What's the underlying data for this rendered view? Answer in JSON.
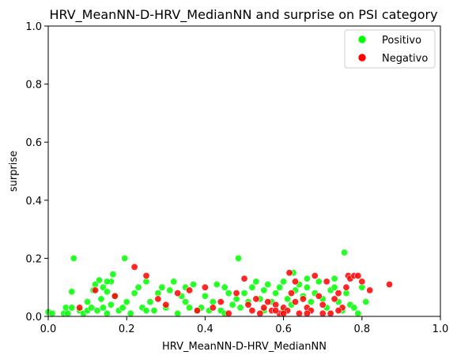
{
  "chart_data": {
    "type": "scatter",
    "title": "HRV_MeanNN-D-HRV_MedianNN and surprise on PSI category",
    "xlabel": "HRV_MeanNN-D-HRV_MedianNN",
    "ylabel": "surprise",
    "xlim": [
      0.0,
      1.0
    ],
    "ylim": [
      0.0,
      1.0
    ],
    "xticks": [
      "0.0",
      "0.2",
      "0.4",
      "0.6",
      "0.8",
      "1.0"
    ],
    "yticks": [
      "0.0",
      "0.2",
      "0.4",
      "0.6",
      "0.8",
      "1.0"
    ],
    "grid": false,
    "legend_position": "top-right",
    "series": [
      {
        "name": "Positivo",
        "color": "#00ff00",
        "points": [
          [
            0.0,
            0.015
          ],
          [
            0.01,
            0.01
          ],
          [
            0.04,
            0.01
          ],
          [
            0.045,
            0.03
          ],
          [
            0.06,
            0.03
          ],
          [
            0.06,
            0.085
          ],
          [
            0.065,
            0.2
          ],
          [
            0.08,
            0.02
          ],
          [
            0.09,
            0.01
          ],
          [
            0.1,
            0.05
          ],
          [
            0.1,
            0.02
          ],
          [
            0.11,
            0.03
          ],
          [
            0.115,
            0.09
          ],
          [
            0.12,
            0.11
          ],
          [
            0.125,
            0.02
          ],
          [
            0.13,
            0.125
          ],
          [
            0.135,
            0.06
          ],
          [
            0.14,
            0.1
          ],
          [
            0.14,
            0.03
          ],
          [
            0.15,
            0.085
          ],
          [
            0.15,
            0.01
          ],
          [
            0.16,
            0.12
          ],
          [
            0.16,
            0.04
          ],
          [
            0.165,
            0.145
          ],
          [
            0.17,
            0.07
          ],
          [
            0.18,
            0.02
          ],
          [
            0.19,
            0.03
          ],
          [
            0.195,
            0.2
          ],
          [
            0.2,
            0.05
          ],
          [
            0.21,
            0.01
          ],
          [
            0.22,
            0.08
          ],
          [
            0.23,
            0.1
          ],
          [
            0.24,
            0.03
          ],
          [
            0.25,
            0.12
          ],
          [
            0.26,
            0.05
          ],
          [
            0.27,
            0.02
          ],
          [
            0.28,
            0.08
          ],
          [
            0.29,
            0.1
          ],
          [
            0.3,
            0.03
          ],
          [
            0.31,
            0.09
          ],
          [
            0.32,
            0.12
          ],
          [
            0.33,
            0.01
          ],
          [
            0.34,
            0.07
          ],
          [
            0.35,
            0.1
          ],
          [
            0.36,
            0.03
          ],
          [
            0.37,
            0.11
          ],
          [
            0.38,
            0.02
          ],
          [
            0.39,
            0.03
          ],
          [
            0.4,
            0.07
          ],
          [
            0.41,
            0.02
          ],
          [
            0.42,
            0.05
          ],
          [
            0.43,
            0.11
          ],
          [
            0.44,
            0.02
          ],
          [
            0.45,
            0.1
          ],
          [
            0.46,
            0.08
          ],
          [
            0.47,
            0.04
          ],
          [
            0.48,
            0.06
          ],
          [
            0.485,
            0.2
          ],
          [
            0.49,
            0.03
          ],
          [
            0.5,
            0.08
          ],
          [
            0.51,
            0.05
          ],
          [
            0.52,
            0.1
          ],
          [
            0.53,
            0.12
          ],
          [
            0.54,
            0.06
          ],
          [
            0.55,
            0.09
          ],
          [
            0.56,
            0.11
          ],
          [
            0.57,
            0.05
          ],
          [
            0.58,
            0.08
          ],
          [
            0.59,
            0.1
          ],
          [
            0.6,
            0.12
          ],
          [
            0.61,
            0.06
          ],
          [
            0.62,
            0.04
          ],
          [
            0.625,
            0.15
          ],
          [
            0.63,
            0.09
          ],
          [
            0.64,
            0.11
          ],
          [
            0.65,
            0.07
          ],
          [
            0.66,
            0.1
          ],
          [
            0.67,
            0.05
          ],
          [
            0.68,
            0.08
          ],
          [
            0.69,
            0.12
          ],
          [
            0.7,
            0.06
          ],
          [
            0.71,
            0.03
          ],
          [
            0.72,
            0.09
          ],
          [
            0.73,
            0.1
          ],
          [
            0.74,
            0.05
          ],
          [
            0.75,
            0.02
          ],
          [
            0.755,
            0.22
          ],
          [
            0.76,
            0.08
          ],
          [
            0.77,
            0.04
          ],
          [
            0.78,
            0.03
          ],
          [
            0.79,
            0.01
          ],
          [
            0.8,
            0.1
          ],
          [
            0.81,
            0.05
          ],
          [
            0.73,
            0.13
          ],
          [
            0.66,
            0.13
          ],
          [
            0.6,
            0.02
          ],
          [
            0.55,
            0.02
          ],
          [
            0.45,
            0.01
          ],
          [
            0.35,
            0.05
          ],
          [
            0.25,
            0.02
          ],
          [
            0.15,
            0.12
          ],
          [
            0.05,
            0.01
          ]
        ]
      },
      {
        "name": "Negativo",
        "color": "#ff0000",
        "points": [
          [
            0.08,
            0.03
          ],
          [
            0.12,
            0.09
          ],
          [
            0.17,
            0.07
          ],
          [
            0.22,
            0.17
          ],
          [
            0.25,
            0.14
          ],
          [
            0.28,
            0.06
          ],
          [
            0.3,
            0.04
          ],
          [
            0.33,
            0.08
          ],
          [
            0.36,
            0.09
          ],
          [
            0.38,
            0.02
          ],
          [
            0.4,
            0.1
          ],
          [
            0.42,
            0.03
          ],
          [
            0.44,
            0.05
          ],
          [
            0.46,
            0.01
          ],
          [
            0.48,
            0.08
          ],
          [
            0.5,
            0.13
          ],
          [
            0.51,
            0.04
          ],
          [
            0.52,
            0.02
          ],
          [
            0.53,
            0.06
          ],
          [
            0.54,
            0.01
          ],
          [
            0.55,
            0.03
          ],
          [
            0.56,
            0.05
          ],
          [
            0.57,
            0.02
          ],
          [
            0.58,
            0.04
          ],
          [
            0.59,
            0.01
          ],
          [
            0.6,
            0.03
          ],
          [
            0.61,
            0.02
          ],
          [
            0.615,
            0.15
          ],
          [
            0.62,
            0.08
          ],
          [
            0.63,
            0.05
          ],
          [
            0.64,
            0.01
          ],
          [
            0.65,
            0.06
          ],
          [
            0.66,
            0.03
          ],
          [
            0.67,
            0.02
          ],
          [
            0.68,
            0.14
          ],
          [
            0.69,
            0.07
          ],
          [
            0.7,
            0.04
          ],
          [
            0.71,
            0.12
          ],
          [
            0.72,
            0.01
          ],
          [
            0.73,
            0.06
          ],
          [
            0.74,
            0.08
          ],
          [
            0.75,
            0.03
          ],
          [
            0.76,
            0.1
          ],
          [
            0.765,
            0.14
          ],
          [
            0.77,
            0.13
          ],
          [
            0.78,
            0.14
          ],
          [
            0.79,
            0.14
          ],
          [
            0.8,
            0.12
          ],
          [
            0.82,
            0.09
          ],
          [
            0.87,
            0.11
          ],
          [
            0.6,
            0.01
          ],
          [
            0.58,
            0.02
          ],
          [
            0.66,
            0.01
          ],
          [
            0.7,
            0.01
          ],
          [
            0.74,
            0.02
          ],
          [
            0.63,
            0.12
          ]
        ]
      }
    ]
  }
}
